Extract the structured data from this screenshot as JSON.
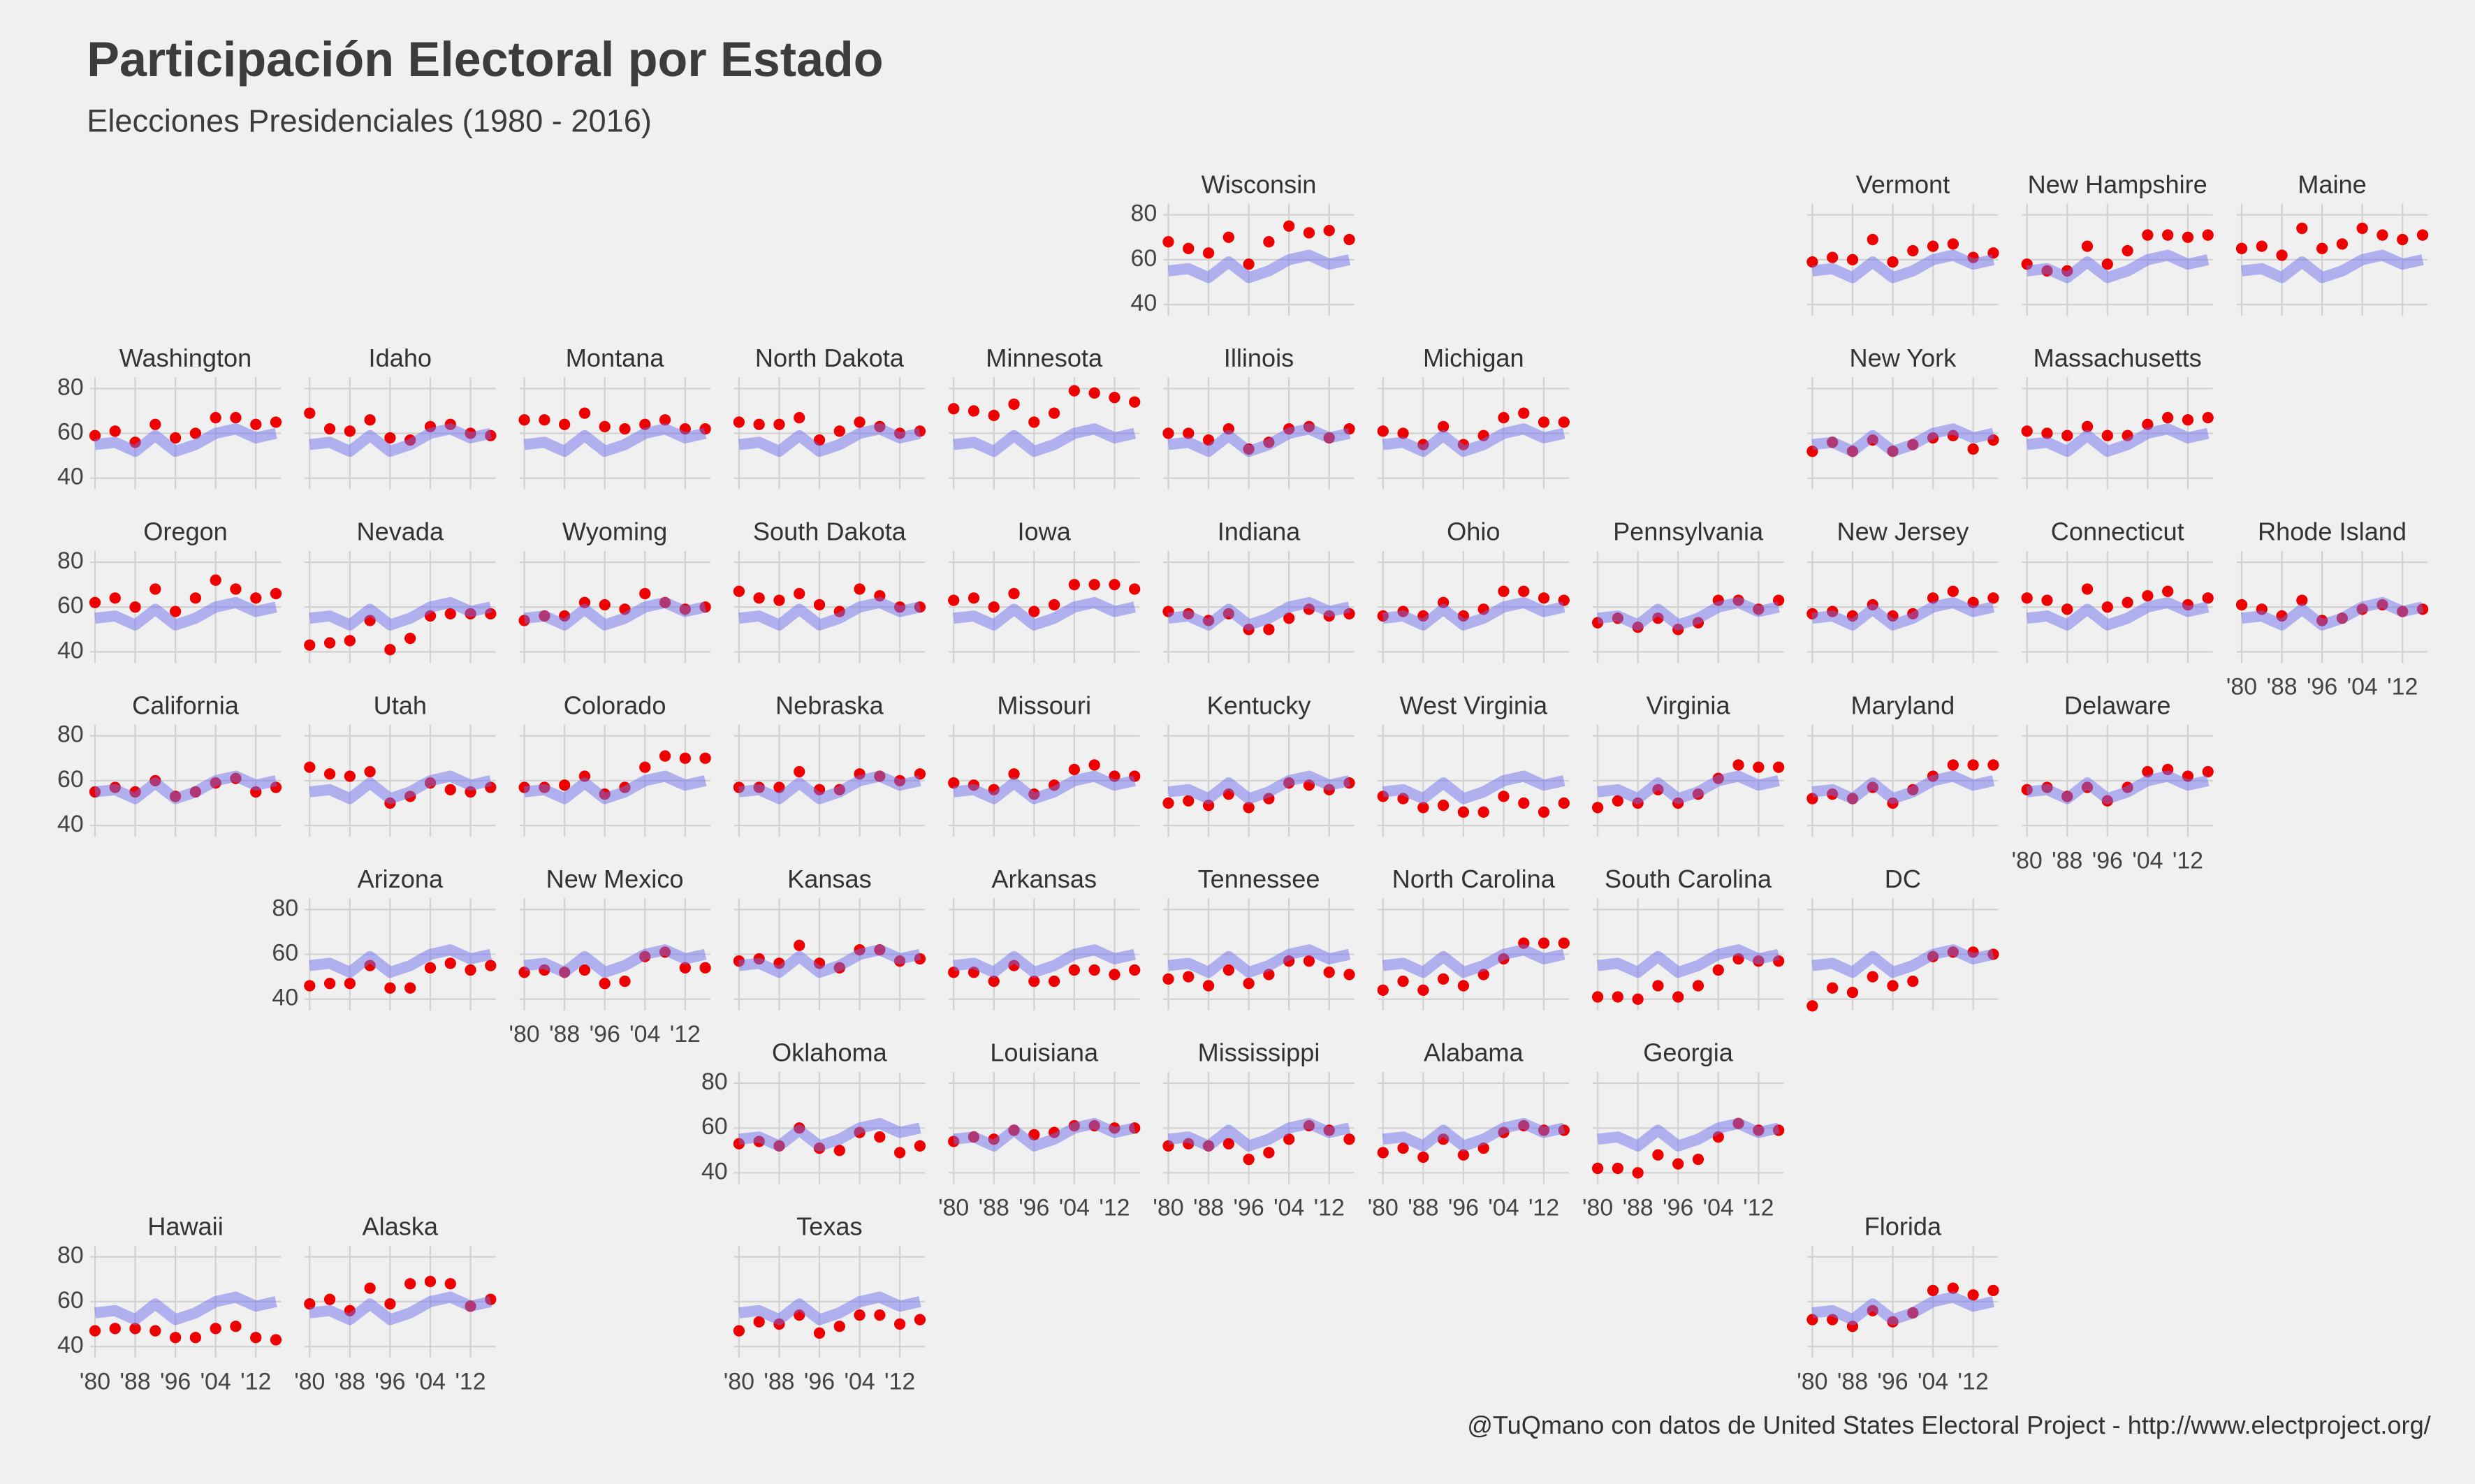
{
  "chart_data": {
    "type": "facet",
    "title": "Participación Electoral por Estado",
    "subtitle": "Elecciones Presidenciales (1980 - 2016)",
    "caption": "@TuQmano con datos de United States Electoral Project - http://www.electproject.org/",
    "x": [
      1980,
      1984,
      1988,
      1992,
      1996,
      2000,
      2004,
      2008,
      2012,
      2016
    ],
    "xlim": [
      1979,
      2017
    ],
    "xticks": [
      {
        "value": 1980,
        "label": "'80"
      },
      {
        "value": 1988,
        "label": "'88"
      },
      {
        "value": 1996,
        "label": "'96"
      },
      {
        "value": 2004,
        "label": "'04"
      },
      {
        "value": 2012,
        "label": "'12"
      }
    ],
    "ylim": [
      35,
      85
    ],
    "yticks": [
      40,
      60,
      80
    ],
    "grid": true,
    "point_color": "#ee0000",
    "national": {
      "color": "#7070ee",
      "values": [
        55,
        56,
        52,
        59,
        52,
        55,
        60,
        62,
        58,
        60
      ]
    },
    "panels": [
      {
        "name": "Wisconsin",
        "values": [
          68,
          65,
          63,
          70,
          58,
          68,
          75,
          72,
          73,
          69
        ]
      },
      {
        "name": "Vermont",
        "values": [
          59,
          61,
          60,
          69,
          59,
          64,
          66,
          67,
          61,
          63
        ]
      },
      {
        "name": "New Hampshire",
        "values": [
          58,
          55,
          55,
          66,
          58,
          64,
          71,
          71,
          70,
          71
        ]
      },
      {
        "name": "Maine",
        "values": [
          65,
          66,
          62,
          74,
          65,
          67,
          74,
          71,
          69,
          71
        ]
      },
      {
        "name": "Washington",
        "values": [
          59,
          61,
          56,
          64,
          58,
          60,
          67,
          67,
          64,
          65
        ]
      },
      {
        "name": "Idaho",
        "values": [
          69,
          62,
          61,
          66,
          58,
          57,
          63,
          64,
          60,
          59
        ]
      },
      {
        "name": "Montana",
        "values": [
          66,
          66,
          64,
          69,
          63,
          62,
          64,
          66,
          62,
          62
        ]
      },
      {
        "name": "North Dakota",
        "values": [
          65,
          64,
          64,
          67,
          57,
          61,
          65,
          63,
          60,
          61
        ]
      },
      {
        "name": "Minnesota",
        "values": [
          71,
          70,
          68,
          73,
          65,
          69,
          79,
          78,
          76,
          74
        ]
      },
      {
        "name": "Illinois",
        "values": [
          60,
          60,
          57,
          62,
          53,
          56,
          62,
          63,
          58,
          62
        ]
      },
      {
        "name": "Michigan",
        "values": [
          61,
          60,
          55,
          63,
          55,
          59,
          67,
          69,
          65,
          65
        ]
      },
      {
        "name": "New York",
        "values": [
          52,
          56,
          52,
          57,
          52,
          55,
          58,
          59,
          53,
          57
        ]
      },
      {
        "name": "Massachusetts",
        "values": [
          61,
          60,
          59,
          63,
          59,
          59,
          64,
          67,
          66,
          67
        ]
      },
      {
        "name": "Oregon",
        "values": [
          62,
          64,
          60,
          68,
          58,
          64,
          72,
          68,
          64,
          66
        ]
      },
      {
        "name": "Nevada",
        "values": [
          43,
          44,
          45,
          54,
          41,
          46,
          56,
          57,
          57,
          57
        ]
      },
      {
        "name": "Wyoming",
        "values": [
          54,
          56,
          56,
          62,
          61,
          59,
          66,
          62,
          59,
          60
        ]
      },
      {
        "name": "South Dakota",
        "values": [
          67,
          64,
          63,
          66,
          61,
          58,
          68,
          65,
          60,
          60
        ]
      },
      {
        "name": "Iowa",
        "values": [
          63,
          64,
          60,
          66,
          58,
          61,
          70,
          70,
          70,
          68
        ]
      },
      {
        "name": "Indiana",
        "values": [
          58,
          57,
          54,
          57,
          50,
          50,
          55,
          59,
          56,
          57
        ]
      },
      {
        "name": "Ohio",
        "values": [
          56,
          58,
          56,
          62,
          56,
          59,
          67,
          67,
          64,
          63
        ]
      },
      {
        "name": "Pennsylvania",
        "values": [
          53,
          55,
          51,
          55,
          50,
          53,
          63,
          63,
          59,
          63
        ]
      },
      {
        "name": "New Jersey",
        "values": [
          57,
          58,
          56,
          61,
          56,
          57,
          64,
          67,
          62,
          64
        ]
      },
      {
        "name": "Connecticut",
        "values": [
          64,
          63,
          59,
          68,
          60,
          62,
          65,
          67,
          61,
          64
        ]
      },
      {
        "name": "Rhode Island",
        "values": [
          61,
          59,
          56,
          63,
          54,
          55,
          59,
          61,
          58,
          59
        ]
      },
      {
        "name": "California",
        "values": [
          55,
          57,
          55,
          60,
          53,
          55,
          59,
          61,
          55,
          57
        ]
      },
      {
        "name": "Utah",
        "values": [
          66,
          63,
          62,
          64,
          50,
          53,
          59,
          56,
          55,
          57
        ]
      },
      {
        "name": "Colorado",
        "values": [
          57,
          57,
          58,
          62,
          54,
          57,
          66,
          71,
          70,
          70
        ]
      },
      {
        "name": "Nebraska",
        "values": [
          57,
          57,
          57,
          64,
          56,
          56,
          63,
          62,
          60,
          63
        ]
      },
      {
        "name": "Missouri",
        "values": [
          59,
          58,
          56,
          63,
          54,
          58,
          65,
          67,
          62,
          62
        ]
      },
      {
        "name": "Kentucky",
        "values": [
          50,
          51,
          49,
          54,
          48,
          52,
          59,
          58,
          56,
          59
        ]
      },
      {
        "name": "West Virginia",
        "values": [
          53,
          52,
          48,
          49,
          46,
          46,
          53,
          50,
          46,
          50
        ]
      },
      {
        "name": "Virginia",
        "values": [
          48,
          51,
          50,
          56,
          50,
          54,
          61,
          67,
          66,
          66
        ]
      },
      {
        "name": "Maryland",
        "values": [
          52,
          54,
          52,
          57,
          50,
          56,
          62,
          67,
          67,
          67
        ]
      },
      {
        "name": "Delaware",
        "values": [
          56,
          57,
          53,
          57,
          51,
          57,
          64,
          65,
          62,
          64
        ]
      },
      {
        "name": "Arizona",
        "values": [
          46,
          47,
          47,
          55,
          45,
          45,
          54,
          56,
          53,
          55
        ]
      },
      {
        "name": "New Mexico",
        "values": [
          52,
          53,
          52,
          53,
          47,
          48,
          59,
          61,
          54,
          54
        ]
      },
      {
        "name": "Kansas",
        "values": [
          57,
          58,
          56,
          64,
          56,
          54,
          62,
          62,
          57,
          58
        ]
      },
      {
        "name": "Arkansas",
        "values": [
          52,
          52,
          48,
          55,
          48,
          48,
          53,
          53,
          51,
          53
        ]
      },
      {
        "name": "Tennessee",
        "values": [
          49,
          50,
          46,
          53,
          47,
          51,
          57,
          57,
          52,
          51
        ]
      },
      {
        "name": "North Carolina",
        "values": [
          44,
          48,
          44,
          49,
          46,
          51,
          58,
          65,
          65,
          65
        ]
      },
      {
        "name": "South Carolina",
        "values": [
          41,
          41,
          40,
          46,
          41,
          46,
          53,
          58,
          57,
          57
        ]
      },
      {
        "name": "DC",
        "values": [
          37,
          45,
          43,
          50,
          46,
          48,
          59,
          61,
          61,
          60
        ]
      },
      {
        "name": "Oklahoma",
        "values": [
          53,
          54,
          52,
          60,
          51,
          50,
          58,
          56,
          49,
          52
        ]
      },
      {
        "name": "Louisiana",
        "values": [
          54,
          56,
          55,
          59,
          57,
          58,
          61,
          61,
          60,
          60
        ]
      },
      {
        "name": "Mississippi",
        "values": [
          52,
          53,
          52,
          53,
          46,
          49,
          55,
          61,
          59,
          55
        ]
      },
      {
        "name": "Alabama",
        "values": [
          49,
          51,
          47,
          55,
          48,
          51,
          58,
          61,
          59,
          59
        ]
      },
      {
        "name": "Georgia",
        "values": [
          42,
          42,
          40,
          48,
          44,
          46,
          56,
          62,
          59,
          59
        ]
      },
      {
        "name": "Hawaii",
        "values": [
          47,
          48,
          48,
          47,
          44,
          44,
          48,
          49,
          44,
          43
        ]
      },
      {
        "name": "Alaska",
        "values": [
          59,
          61,
          56,
          66,
          59,
          68,
          69,
          68,
          58,
          61
        ]
      },
      {
        "name": "Texas",
        "values": [
          47,
          51,
          50,
          54,
          46,
          49,
          54,
          54,
          50,
          52
        ]
      },
      {
        "name": "Florida",
        "values": [
          52,
          52,
          49,
          56,
          51,
          55,
          65,
          66,
          63,
          65
        ]
      }
    ]
  }
}
